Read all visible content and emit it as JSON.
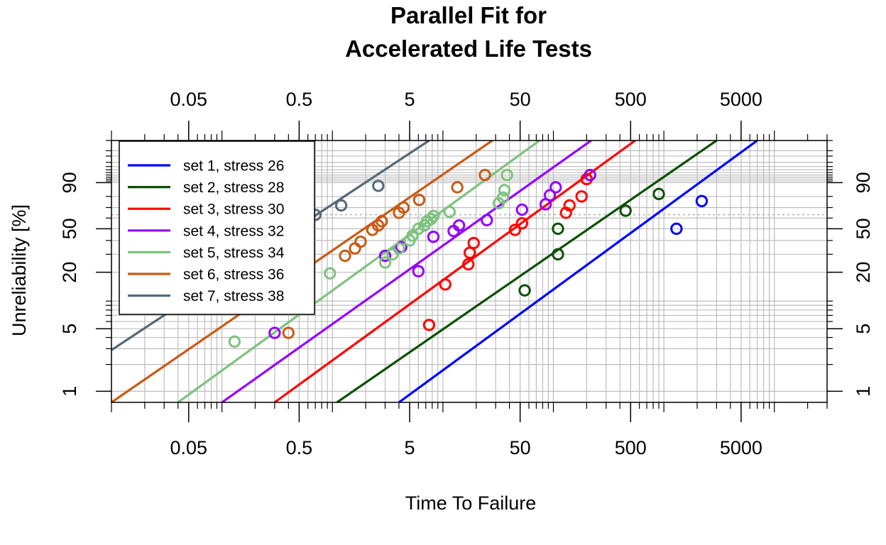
{
  "chart_data": {
    "type": "scatter",
    "title": [
      "Parallel Fit for",
      "Accelerated Life Tests"
    ],
    "xlabel": "Time To Failure",
    "ylabel": "Unreliability [%]",
    "x_scale": "log",
    "y_scale": "weibull",
    "xlim": [
      0.01,
      30000
    ],
    "ylim": [
      0.75,
      99.9
    ],
    "x_major_ticks": [
      0.05,
      0.5,
      5,
      50,
      500,
      5000
    ],
    "x_major_tick_labels": [
      "0.05",
      "0.5",
      "5",
      "50",
      "500",
      "5000"
    ],
    "y_major_ticks": [
      1,
      5,
      20,
      50,
      90
    ],
    "y_major_tick_labels": [
      "1",
      "5",
      "20",
      "50",
      "90"
    ],
    "grid": true,
    "reference_line_y": 63.2,
    "legend_position": "top-left",
    "series": [
      {
        "name": "set 1, stress 26",
        "color": "#0000ff",
        "fit": [
          [
            4.0,
            0.75
          ],
          [
            7000,
            99.9
          ]
        ],
        "points": [
          [
            1300,
            50
          ],
          [
            2200,
            76
          ]
        ]
      },
      {
        "name": "set 2, stress 28",
        "color": "#0a5000",
        "fit": [
          [
            1.1,
            0.75
          ],
          [
            3000,
            99.9
          ]
        ],
        "points": [
          [
            55,
            13
          ],
          [
            110,
            30
          ],
          [
            110,
            50
          ],
          [
            450,
            67
          ],
          [
            900,
            82
          ]
        ]
      },
      {
        "name": "set 3, stress 30",
        "color": "#ff0000",
        "fit": [
          [
            0.3,
            0.75
          ],
          [
            550,
            99.9
          ]
        ],
        "points": [
          [
            7.5,
            5.5
          ],
          [
            10.5,
            15
          ],
          [
            17,
            24
          ],
          [
            17.5,
            31
          ],
          [
            19,
            38
          ],
          [
            45,
            49
          ],
          [
            52,
            55
          ],
          [
            130,
            65
          ],
          [
            140,
            72
          ],
          [
            180,
            80
          ],
          [
            200,
            92
          ]
        ]
      },
      {
        "name": "set 4, stress 32",
        "color": "#9400ff",
        "fit": [
          [
            0.1,
            0.75
          ],
          [
            220,
            99.9
          ]
        ],
        "points": [
          [
            0.3,
            4.5
          ],
          [
            3.0,
            29
          ],
          [
            4.2,
            35
          ],
          [
            6.0,
            20.5
          ],
          [
            8.2,
            43
          ],
          [
            12.5,
            48
          ],
          [
            14.0,
            53
          ],
          [
            25,
            58
          ],
          [
            52,
            68
          ],
          [
            85,
            73
          ],
          [
            93,
            81
          ],
          [
            105,
            87
          ],
          [
            215,
            94
          ]
        ]
      },
      {
        "name": "set 5, stress 34",
        "color": "#7ec27e",
        "fit": [
          [
            0.04,
            0.75
          ],
          [
            75,
            99.9
          ]
        ],
        "points": [
          [
            0.13,
            3.6
          ],
          [
            0.95,
            19.5
          ],
          [
            3.0,
            25
          ],
          [
            3.5,
            30
          ],
          [
            4.0,
            34
          ],
          [
            5.0,
            40
          ],
          [
            5.3,
            44
          ],
          [
            6.0,
            50
          ],
          [
            6.8,
            53
          ],
          [
            7.2,
            57
          ],
          [
            7.8,
            59
          ],
          [
            8.2,
            62
          ],
          [
            11.5,
            66
          ],
          [
            32,
            74
          ],
          [
            35,
            79
          ],
          [
            36,
            85
          ],
          [
            38,
            94
          ]
        ]
      },
      {
        "name": "set 6, stress 36",
        "color": "#c85a14",
        "fit": [
          [
            0.01,
            0.75
          ],
          [
            28,
            99.9
          ]
        ],
        "points": [
          [
            0.4,
            4.5
          ],
          [
            1.3,
            29
          ],
          [
            1.6,
            34
          ],
          [
            1.8,
            39
          ],
          [
            2.3,
            49
          ],
          [
            2.6,
            53
          ],
          [
            2.8,
            57
          ],
          [
            4.0,
            65
          ],
          [
            4.4,
            70
          ],
          [
            6.1,
            77
          ],
          [
            13.5,
            87
          ],
          [
            24,
            94
          ]
        ]
      },
      {
        "name": "set 7, stress 38",
        "color": "#556878",
        "fit": [
          [
            0.01,
            2.9
          ],
          [
            7.5,
            99.9
          ]
        ],
        "points": [
          [
            0.7,
            63
          ],
          [
            1.2,
            72
          ],
          [
            2.6,
            88
          ]
        ]
      }
    ]
  }
}
